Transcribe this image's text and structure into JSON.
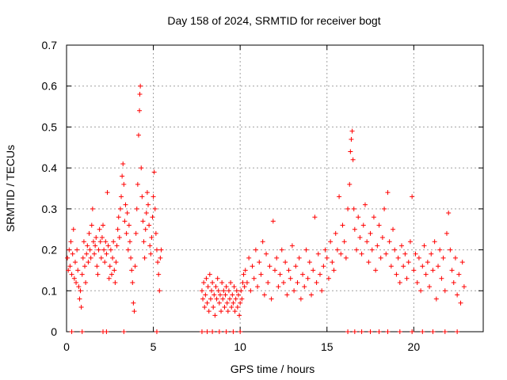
{
  "chart_data": {
    "type": "scatter",
    "title": "Day 158 of 2024, SRMTID for receiver bogt",
    "xlabel": "GPS time / hours",
    "ylabel": "SRMTID / TECUs",
    "xlim": [
      0,
      24
    ],
    "ylim": [
      0,
      0.7
    ],
    "xticks": [
      0,
      5,
      10,
      15,
      20
    ],
    "yticks": [
      0,
      0.1,
      0.2,
      0.3,
      0.4,
      0.5,
      0.6,
      0.7
    ],
    "xtick_labels": [
      "0",
      "5",
      "10",
      "15",
      "20"
    ],
    "ytick_labels": [
      "0",
      "0.1",
      "0.2",
      "0.3",
      "0.4",
      "0.5",
      "0.6",
      "0.7"
    ],
    "grid": true,
    "marker": "+",
    "series": [
      {
        "name": "SRMTID",
        "color": "#ff0000",
        "points": [
          [
            0.05,
            0.18
          ],
          [
            0.1,
            0.15
          ],
          [
            0.15,
            0.2
          ],
          [
            0.2,
            0.16
          ],
          [
            0.25,
            0.22
          ],
          [
            0.3,
            0.14
          ],
          [
            0.35,
            0.19
          ],
          [
            0.4,
            0.25
          ],
          [
            0.45,
            0.13
          ],
          [
            0.5,
            0.17
          ],
          [
            0.55,
            0.12
          ],
          [
            0.6,
            0.2
          ],
          [
            0.65,
            0.15
          ],
          [
            0.7,
            0.11
          ],
          [
            0.75,
            0.08
          ],
          [
            0.8,
            0.1
          ],
          [
            0.85,
            0.06
          ],
          [
            0.9,
            0.14
          ],
          [
            0.95,
            0.18
          ],
          [
            1.0,
            0.22
          ],
          [
            1.05,
            0.16
          ],
          [
            1.1,
            0.12
          ],
          [
            1.15,
            0.19
          ],
          [
            1.2,
            0.21
          ],
          [
            1.25,
            0.17
          ],
          [
            1.3,
            0.24
          ],
          [
            1.35,
            0.2
          ],
          [
            1.4,
            0.18
          ],
          [
            1.45,
            0.26
          ],
          [
            1.5,
            0.3
          ],
          [
            1.55,
            0.22
          ],
          [
            1.6,
            0.19
          ],
          [
            1.65,
            0.21
          ],
          [
            1.7,
            0.23
          ],
          [
            1.75,
            0.16
          ],
          [
            1.8,
            0.14
          ],
          [
            1.85,
            0.2
          ],
          [
            1.9,
            0.25
          ],
          [
            1.95,
            0.22
          ],
          [
            2.0,
            0.18
          ],
          [
            2.05,
            0.23
          ],
          [
            2.1,
            0.26
          ],
          [
            2.15,
            0.2
          ],
          [
            2.2,
            0.17
          ],
          [
            2.25,
            0.22
          ],
          [
            2.3,
            0.19
          ],
          [
            2.35,
            0.34
          ],
          [
            2.4,
            0.21
          ],
          [
            2.45,
            0.13
          ],
          [
            2.5,
            0.16
          ],
          [
            2.55,
            0.2
          ],
          [
            2.6,
            0.14
          ],
          [
            2.65,
            0.18
          ],
          [
            2.7,
            0.22
          ],
          [
            2.75,
            0.15
          ],
          [
            2.8,
            0.12
          ],
          [
            2.85,
            0.17
          ],
          [
            2.9,
            0.21
          ],
          [
            2.95,
            0.25
          ],
          [
            3.0,
            0.28
          ],
          [
            3.05,
            0.23
          ],
          [
            3.1,
            0.3
          ],
          [
            3.15,
            0.33
          ],
          [
            3.2,
            0.38
          ],
          [
            3.25,
            0.41
          ],
          [
            3.3,
            0.36
          ],
          [
            3.35,
            0.27
          ],
          [
            3.4,
            0.31
          ],
          [
            3.45,
            0.24
          ],
          [
            3.5,
            0.29
          ],
          [
            3.55,
            0.2
          ],
          [
            3.6,
            0.26
          ],
          [
            3.65,
            0.22
          ],
          [
            3.7,
            0.18
          ],
          [
            3.75,
            0.15
          ],
          [
            3.8,
            0.12
          ],
          [
            3.85,
            0.07
          ],
          [
            3.9,
            0.05
          ],
          [
            3.95,
            0.16
          ],
          [
            4.0,
            0.24
          ],
          [
            4.05,
            0.3
          ],
          [
            4.1,
            0.36
          ],
          [
            4.15,
            0.48
          ],
          [
            4.2,
            0.54
          ],
          [
            4.22,
            0.58
          ],
          [
            4.25,
            0.6
          ],
          [
            4.3,
            0.4
          ],
          [
            4.35,
            0.33
          ],
          [
            4.4,
            0.27
          ],
          [
            4.45,
            0.22
          ],
          [
            4.5,
            0.18
          ],
          [
            4.55,
            0.25
          ],
          [
            4.6,
            0.29
          ],
          [
            4.65,
            0.34
          ],
          [
            4.7,
            0.31
          ],
          [
            4.75,
            0.26
          ],
          [
            4.8,
            0.21
          ],
          [
            4.85,
            0.19
          ],
          [
            4.9,
            0.23
          ],
          [
            4.95,
            0.28
          ],
          [
            5.0,
            0.33
          ],
          [
            5.05,
            0.39
          ],
          [
            5.1,
            0.3
          ],
          [
            5.15,
            0.24
          ],
          [
            5.2,
            0.2
          ],
          [
            5.25,
            0.17
          ],
          [
            5.3,
            0.14
          ],
          [
            5.35,
            0.1
          ],
          [
            5.4,
            0.18
          ],
          [
            5.45,
            0.2
          ],
          [
            0.3,
            0.0
          ],
          [
            0.9,
            0.0
          ],
          [
            2.1,
            0.0
          ],
          [
            2.3,
            0.0
          ],
          [
            3.3,
            0.0
          ],
          [
            5.2,
            0.0
          ],
          [
            7.8,
            0.1
          ],
          [
            7.85,
            0.08
          ],
          [
            7.9,
            0.12
          ],
          [
            7.95,
            0.06
          ],
          [
            8.0,
            0.09
          ],
          [
            8.05,
            0.13
          ],
          [
            8.1,
            0.07
          ],
          [
            8.15,
            0.11
          ],
          [
            8.2,
            0.05
          ],
          [
            8.25,
            0.14
          ],
          [
            8.3,
            0.08
          ],
          [
            8.35,
            0.1
          ],
          [
            8.4,
            0.12
          ],
          [
            8.45,
            0.06
          ],
          [
            8.5,
            0.09
          ],
          [
            8.55,
            0.04
          ],
          [
            8.6,
            0.11
          ],
          [
            8.65,
            0.08
          ],
          [
            8.7,
            0.13
          ],
          [
            8.75,
            0.1
          ],
          [
            8.8,
            0.07
          ],
          [
            8.85,
            0.09
          ],
          [
            8.9,
            0.05
          ],
          [
            8.95,
            0.12
          ],
          [
            9.0,
            0.08
          ],
          [
            9.05,
            0.1
          ],
          [
            9.1,
            0.06
          ],
          [
            9.15,
            0.09
          ],
          [
            9.2,
            0.11
          ],
          [
            9.25,
            0.07
          ],
          [
            9.3,
            0.05
          ],
          [
            9.35,
            0.1
          ],
          [
            9.4,
            0.08
          ],
          [
            9.45,
            0.12
          ],
          [
            9.5,
            0.06
          ],
          [
            9.55,
            0.09
          ],
          [
            9.6,
            0.07
          ],
          [
            9.65,
            0.11
          ],
          [
            9.7,
            0.05
          ],
          [
            9.75,
            0.08
          ],
          [
            9.8,
            0.1
          ],
          [
            9.85,
            0.06
          ],
          [
            9.9,
            0.09
          ],
          [
            9.95,
            0.04
          ],
          [
            10.0,
            0.07
          ],
          [
            10.05,
            0.1
          ],
          [
            10.1,
            0.08
          ],
          [
            10.15,
            0.12
          ],
          [
            10.2,
            0.14
          ],
          [
            10.25,
            0.11
          ],
          [
            7.8,
            0.0
          ],
          [
            8.1,
            0.0
          ],
          [
            8.4,
            0.0
          ],
          [
            8.8,
            0.0
          ],
          [
            9.2,
            0.0
          ],
          [
            9.6,
            0.0
          ],
          [
            10.0,
            0.0
          ],
          [
            10.3,
            0.15
          ],
          [
            10.4,
            0.12
          ],
          [
            10.5,
            0.18
          ],
          [
            10.6,
            0.1
          ],
          [
            10.7,
            0.16
          ],
          [
            10.8,
            0.13
          ],
          [
            10.9,
            0.2
          ],
          [
            11.0,
            0.11
          ],
          [
            11.1,
            0.17
          ],
          [
            11.2,
            0.14
          ],
          [
            11.3,
            0.22
          ],
          [
            11.4,
            0.09
          ],
          [
            11.5,
            0.19
          ],
          [
            11.6,
            0.12
          ],
          [
            11.7,
            0.16
          ],
          [
            11.8,
            0.08
          ],
          [
            11.9,
            0.27
          ],
          [
            12.0,
            0.15
          ],
          [
            12.1,
            0.18
          ],
          [
            12.2,
            0.11
          ],
          [
            12.3,
            0.14
          ],
          [
            12.4,
            0.2
          ],
          [
            12.5,
            0.12
          ],
          [
            12.6,
            0.17
          ],
          [
            12.7,
            0.09
          ],
          [
            12.8,
            0.15
          ],
          [
            12.9,
            0.13
          ],
          [
            13.0,
            0.21
          ],
          [
            13.1,
            0.1
          ],
          [
            13.2,
            0.16
          ],
          [
            13.3,
            0.12
          ],
          [
            13.4,
            0.18
          ],
          [
            13.5,
            0.08
          ],
          [
            13.6,
            0.14
          ],
          [
            13.7,
            0.11
          ],
          [
            13.8,
            0.2
          ],
          [
            13.9,
            0.13
          ],
          [
            14.0,
            0.17
          ],
          [
            14.1,
            0.09
          ],
          [
            14.2,
            0.15
          ],
          [
            14.3,
            0.28
          ],
          [
            14.4,
            0.12
          ],
          [
            14.5,
            0.19
          ],
          [
            14.6,
            0.14
          ],
          [
            14.7,
            0.1
          ],
          [
            14.8,
            0.16
          ],
          [
            14.9,
            0.2
          ],
          [
            15.0,
            0.18
          ],
          [
            15.1,
            0.13
          ],
          [
            15.2,
            0.22
          ],
          [
            15.3,
            0.17
          ],
          [
            15.4,
            0.15
          ],
          [
            15.5,
            0.24
          ],
          [
            15.6,
            0.2
          ],
          [
            15.7,
            0.33
          ],
          [
            15.8,
            0.19
          ],
          [
            15.9,
            0.26
          ],
          [
            16.0,
            0.22
          ],
          [
            16.1,
            0.18
          ],
          [
            16.2,
            0.3
          ],
          [
            16.3,
            0.36
          ],
          [
            16.35,
            0.44
          ],
          [
            16.4,
            0.47
          ],
          [
            16.45,
            0.49
          ],
          [
            16.5,
            0.42
          ],
          [
            16.55,
            0.3
          ],
          [
            16.6,
            0.25
          ],
          [
            16.7,
            0.2
          ],
          [
            16.8,
            0.28
          ],
          [
            16.9,
            0.23
          ],
          [
            17.0,
            0.19
          ],
          [
            17.1,
            0.26
          ],
          [
            17.2,
            0.31
          ],
          [
            17.3,
            0.22
          ],
          [
            17.4,
            0.17
          ],
          [
            17.5,
            0.24
          ],
          [
            17.6,
            0.2
          ],
          [
            17.7,
            0.28
          ],
          [
            17.8,
            0.15
          ],
          [
            17.9,
            0.21
          ],
          [
            18.0,
            0.26
          ],
          [
            18.1,
            0.18
          ],
          [
            18.2,
            0.23
          ],
          [
            18.3,
            0.3
          ],
          [
            18.4,
            0.19
          ],
          [
            18.5,
            0.34
          ],
          [
            18.6,
            0.22
          ],
          [
            18.7,
            0.16
          ],
          [
            18.8,
            0.25
          ],
          [
            18.9,
            0.2
          ],
          [
            19.0,
            0.14
          ],
          [
            19.1,
            0.18
          ],
          [
            19.2,
            0.12
          ],
          [
            19.3,
            0.21
          ],
          [
            19.4,
            0.16
          ],
          [
            19.5,
            0.19
          ],
          [
            19.6,
            0.13
          ],
          [
            19.7,
            0.17
          ],
          [
            19.8,
            0.22
          ],
          [
            19.9,
            0.33
          ],
          [
            20.0,
            0.15
          ],
          [
            20.1,
            0.19
          ],
          [
            20.2,
            0.12
          ],
          [
            20.3,
            0.18
          ],
          [
            20.4,
            0.1
          ],
          [
            20.5,
            0.16
          ],
          [
            20.6,
            0.21
          ],
          [
            20.7,
            0.14
          ],
          [
            20.8,
            0.17
          ],
          [
            20.9,
            0.11
          ],
          [
            21.0,
            0.19
          ],
          [
            21.1,
            0.15
          ],
          [
            21.2,
            0.22
          ],
          [
            21.3,
            0.08
          ],
          [
            21.4,
            0.16
          ],
          [
            21.5,
            0.2
          ],
          [
            21.6,
            0.13
          ],
          [
            21.7,
            0.18
          ],
          [
            21.8,
            0.1
          ],
          [
            21.9,
            0.24
          ],
          [
            22.0,
            0.29
          ],
          [
            22.1,
            0.2
          ],
          [
            22.2,
            0.15
          ],
          [
            22.3,
            0.12
          ],
          [
            22.4,
            0.18
          ],
          [
            22.5,
            0.09
          ],
          [
            22.6,
            0.14
          ],
          [
            22.7,
            0.07
          ],
          [
            22.8,
            0.17
          ],
          [
            22.9,
            0.11
          ],
          [
            16.2,
            0.0
          ],
          [
            16.6,
            0.0
          ],
          [
            17.0,
            0.0
          ],
          [
            17.5,
            0.0
          ],
          [
            18.0,
            0.0
          ],
          [
            18.5,
            0.0
          ],
          [
            19.2,
            0.0
          ],
          [
            19.9,
            0.0
          ],
          [
            20.5,
            0.0
          ],
          [
            21.1,
            0.0
          ],
          [
            21.8,
            0.0
          ],
          [
            22.5,
            0.0
          ]
        ]
      }
    ]
  }
}
